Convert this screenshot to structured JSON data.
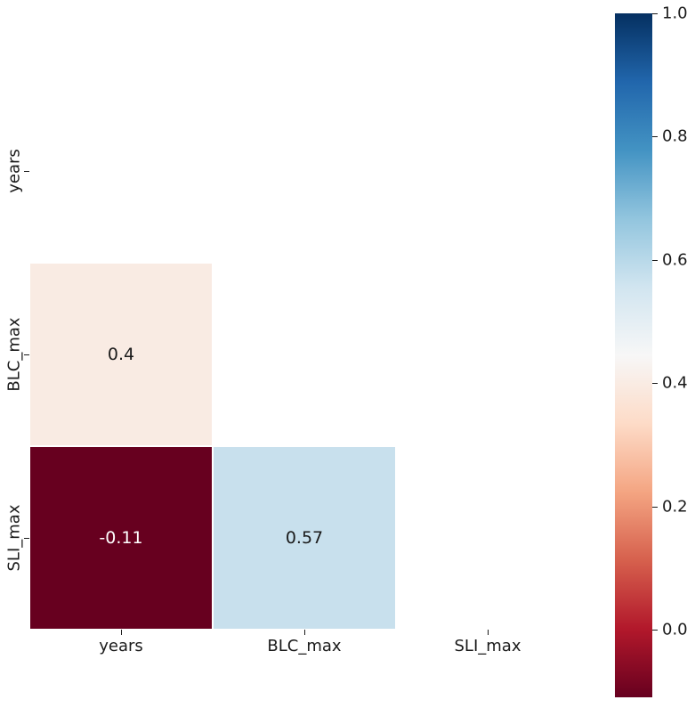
{
  "chart_data": {
    "type": "heatmap",
    "title": "",
    "variables": [
      "years",
      "BLC_max",
      "SLI_max"
    ],
    "x_tick_labels": [
      "years",
      "BLC_max",
      "SLI_max"
    ],
    "y_tick_labels": [
      "years",
      "BLC_max",
      "SLI_max"
    ],
    "mask": "upper triangle and diagonal hidden (white)",
    "colormap": "RdBu",
    "vmin": -0.11,
    "vmax": 1.0,
    "cells": [
      {
        "row": 1,
        "col": 0,
        "row_label": "BLC_max",
        "col_label": "years",
        "value": 0.4,
        "label": "0.4",
        "color": "#f9ebe3",
        "text_color": "#1a1a1a"
      },
      {
        "row": 2,
        "col": 0,
        "row_label": "SLI_max",
        "col_label": "years",
        "value": -0.11,
        "label": "-0.11",
        "color": "#67001f",
        "text_color": "#ffffff"
      },
      {
        "row": 2,
        "col": 1,
        "row_label": "SLI_max",
        "col_label": "BLC_max",
        "value": 0.57,
        "label": "0.57",
        "color": "#c8e0ed",
        "text_color": "#1a1a1a"
      }
    ],
    "colorbar": {
      "tick_labels": [
        "1.0",
        "0.8",
        "0.6",
        "0.4",
        "0.2",
        "0.0"
      ],
      "tick_values": [
        1.0,
        0.8,
        0.6,
        0.4,
        0.2,
        0.0
      ],
      "bar_min": -0.11,
      "bar_max": 1.0,
      "legend_position": "right",
      "gradient_top_to_bottom": [
        {
          "pos": 0,
          "color": "#053061"
        },
        {
          "pos": 10,
          "color": "#2166ac"
        },
        {
          "pos": 20,
          "color": "#4393c3"
        },
        {
          "pos": 30,
          "color": "#92c5de"
        },
        {
          "pos": 40,
          "color": "#d1e5f0"
        },
        {
          "pos": 50,
          "color": "#f7f7f7"
        },
        {
          "pos": 60,
          "color": "#fddbc7"
        },
        {
          "pos": 70,
          "color": "#f4a582"
        },
        {
          "pos": 80,
          "color": "#d6604d"
        },
        {
          "pos": 90,
          "color": "#b2182b"
        },
        {
          "pos": 100,
          "color": "#67001f"
        }
      ]
    }
  },
  "colors": {
    "background": "#ffffff",
    "tick": "#1a1a1a",
    "label": "#1a1a1a",
    "grid_line": "#ffffff"
  }
}
